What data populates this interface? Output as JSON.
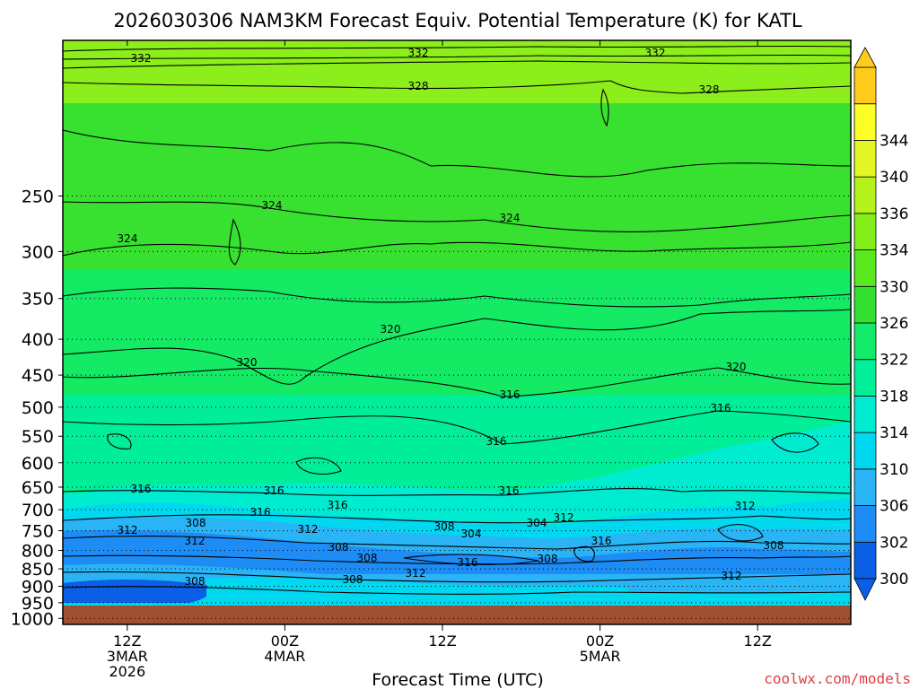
{
  "chart_data": {
    "type": "heatmap",
    "title": "2026030306 NAM3KM Forecast Equiv. Potential Temperature (K) for KATL",
    "xlabel": "Forecast Time (UTC)",
    "ylabel": "",
    "watermark": "coolwx.com/models",
    "y_scale": "log-pressure",
    "y_axis": {
      "unit": "hPa",
      "range": [
        1020,
        150
      ],
      "ticks": [
        "250",
        "300",
        "350",
        "400",
        "450",
        "500",
        "550",
        "600",
        "650",
        "700",
        "750",
        "800",
        "850",
        "900",
        "950",
        "1000"
      ]
    },
    "x_axis": {
      "ticks": [
        {
          "hour": "12Z",
          "day": "3MAR",
          "year": "2026"
        },
        {
          "hour": "00Z",
          "day": "4MAR",
          "year": ""
        },
        {
          "hour": "12Z",
          "day": "",
          "year": ""
        },
        {
          "hour": "00Z",
          "day": "5MAR",
          "year": ""
        },
        {
          "hour": "12Z",
          "day": "",
          "year": ""
        }
      ]
    },
    "colorbar": {
      "levels": [
        "300",
        "302",
        "306",
        "310",
        "314",
        "318",
        "322",
        "326",
        "330",
        "334",
        "336",
        "340",
        "344"
      ],
      "colors": [
        "#0a5fe6",
        "#1e8cf5",
        "#29b4f5",
        "#00d8f0",
        "#00ecd0",
        "#00f09a",
        "#12ec6a",
        "#32e030",
        "#5ae81e",
        "#84ee1a",
        "#b4f21c",
        "#e4f624",
        "#ffff28",
        "#ffcc1c"
      ]
    },
    "contour_interval": 4,
    "contour_labels": [
      "332",
      "332",
      "332",
      "328",
      "328",
      "324",
      "324",
      "324",
      "320",
      "320",
      "320",
      "316",
      "316",
      "316",
      "316",
      "316",
      "316",
      "316",
      "316",
      "312",
      "312",
      "312",
      "312",
      "312",
      "312",
      "312",
      "308",
      "308",
      "308",
      "308",
      "308",
      "308",
      "308",
      "304",
      "304",
      "316",
      "308",
      "316"
    ],
    "ground_color": "#a05030"
  }
}
